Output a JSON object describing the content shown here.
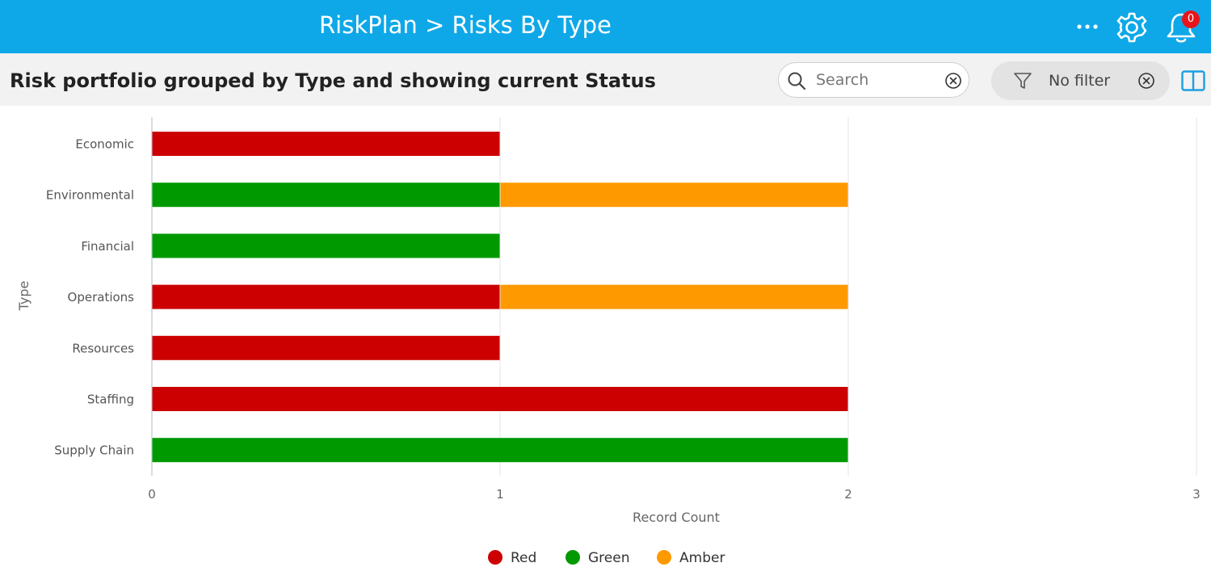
{
  "app": {
    "title": "RiskPlan > Risks By Type",
    "notification_count": "0"
  },
  "icons": {
    "more": "more-dots-icon",
    "settings": "gear-icon",
    "notifications": "bell-icon",
    "search": "search-icon",
    "clear_search": "clear-circle-icon",
    "filter": "filter-funnel-icon",
    "clear_filter": "clear-circle-icon",
    "panel": "side-panel-icon"
  },
  "header": {
    "page_title": "Risk portfolio grouped by Type and showing current Status",
    "search_placeholder": "Search",
    "filter_label": "No filter"
  },
  "colors": {
    "topbar": "#0ea8e8",
    "red": "#cc0000",
    "green": "#009900",
    "amber": "#ff9900"
  },
  "chart_data": {
    "type": "bar",
    "orientation": "horizontal",
    "stacked": true,
    "categories": [
      "Economic",
      "Environmental",
      "Financial",
      "Operations",
      "Resources",
      "Staffing",
      "Supply Chain"
    ],
    "series": [
      {
        "name": "Red",
        "color": "#cc0000",
        "values": [
          1,
          0,
          0,
          1,
          1,
          2,
          0
        ]
      },
      {
        "name": "Green",
        "color": "#009900",
        "values": [
          0,
          1,
          1,
          0,
          0,
          0,
          2
        ]
      },
      {
        "name": "Amber",
        "color": "#ff9900",
        "values": [
          0,
          1,
          0,
          1,
          0,
          0,
          0
        ]
      }
    ],
    "xlabel": "Record Count",
    "ylabel": "Type",
    "xlim": [
      0,
      3
    ],
    "xticks": [
      0,
      1,
      2,
      3
    ],
    "grid": true,
    "legend_position": "bottom"
  }
}
